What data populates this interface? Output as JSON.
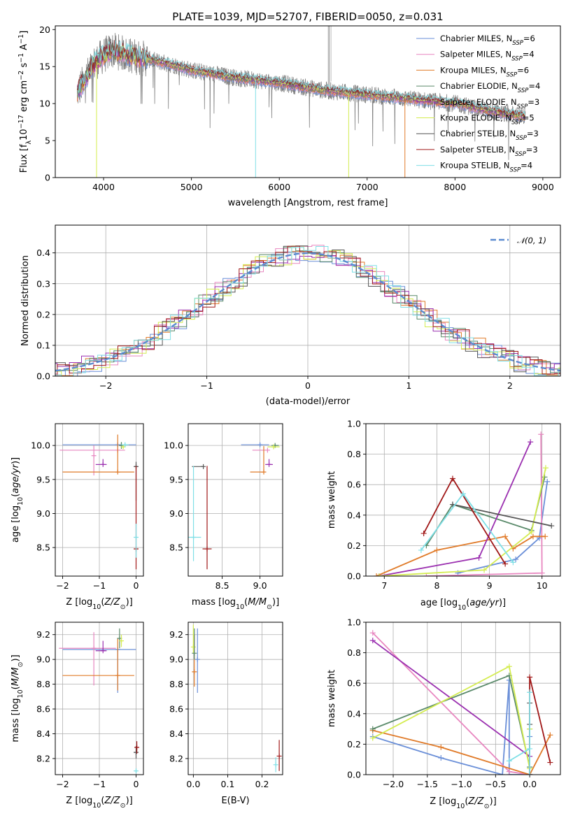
{
  "figure_title": "PLATE=1039, MJD=52707, FIBERID=0050, z=0.031",
  "colors": {
    "chabrier_miles": "#6a8fd8",
    "salpeter_miles": "#e887c0",
    "kroupa_miles": "#e07b2a",
    "chabrier_elodie": "#5a8a6a",
    "salpeter_elodie": "#9b30b0",
    "kroupa_elodie": "#d4ec50",
    "chabrier_stelib": "#555555",
    "salpeter_stelib": "#a01818",
    "kroupa_stelib": "#7fdfe6",
    "observed": "#808080",
    "normal": "#5b8bd0"
  },
  "chart_data": [
    {
      "id": "spectrum",
      "type": "line",
      "xlabel": "wavelength [Angstrom, rest frame]",
      "ylabel": "Flux [f_λ 10^-17 erg cm^-2 s^-1 A^-1]",
      "xlim": [
        3450,
        9200
      ],
      "ylim": [
        0,
        20.5
      ],
      "xticks": [
        4000,
        5000,
        6000,
        7000,
        8000,
        9000
      ],
      "yticks": [
        0,
        5,
        10,
        15,
        20
      ],
      "legend_position": "upper right",
      "legend": [
        {
          "label": "Chabrier MILES, N_SSP=6",
          "key": "chabrier_miles"
        },
        {
          "label": "Salpeter MILES, N_SSP=4",
          "key": "salpeter_miles"
        },
        {
          "label": "Kroupa MILES, N_SSP=6",
          "key": "kroupa_miles"
        },
        {
          "label": "Chabrier ELODIE, N_SSP=4",
          "key": "chabrier_elodie"
        },
        {
          "label": "Salpeter ELODIE, N_SSP=3",
          "key": "salpeter_elodie"
        },
        {
          "label": "Kroupa ELODIE, N_SSP=5",
          "key": "kroupa_elodie"
        },
        {
          "label": "Chabrier STELIB, N_SSP=3",
          "key": "chabrier_stelib"
        },
        {
          "label": "Salpeter STELIB, N_SSP=3",
          "key": "salpeter_stelib"
        },
        {
          "label": "Kroupa STELIB, N_SSP=4",
          "key": "kroupa_stelib"
        }
      ],
      "continuum_shape": [
        [
          3700,
          11.5
        ],
        [
          3900,
          15.5
        ],
        [
          4000,
          16.5
        ],
        [
          4100,
          17.2
        ],
        [
          4300,
          16.5
        ],
        [
          4500,
          16.0
        ],
        [
          4800,
          15.2
        ],
        [
          5000,
          14.5
        ],
        [
          5500,
          13.5
        ],
        [
          6000,
          12.8
        ],
        [
          6500,
          11.8
        ],
        [
          7000,
          11.2
        ],
        [
          7500,
          10.6
        ],
        [
          8000,
          10.0
        ],
        [
          8500,
          8.8
        ],
        [
          8800,
          8.2
        ]
      ]
    },
    {
      "id": "residuals",
      "type": "histogram",
      "xlabel": "(data-model)/error",
      "ylabel": "Normed distribution",
      "xlim": [
        -2.5,
        2.5
      ],
      "ylim": [
        0,
        0.49
      ],
      "xticks": [
        -2,
        -1,
        0,
        1,
        2
      ],
      "yticks": [
        0.0,
        0.1,
        0.2,
        0.3,
        0.4
      ],
      "bin_width": 0.12,
      "reference": {
        "label": "𝒩(0, 1)",
        "mean": 0,
        "sigma": 1
      }
    },
    {
      "id": "age_vs_Z",
      "type": "scatter",
      "xlabel": "Z [log10(Z/Z☉)]",
      "ylabel": "age  [log10(age/yr)]",
      "xlim": [
        -2.2,
        0.2
      ],
      "ylim": [
        8.08,
        10.32
      ],
      "xticks": [
        -2,
        -1,
        0
      ],
      "yticks": [
        8.5,
        9.0,
        9.5,
        10.0
      ],
      "points": [
        {
          "key": "chabrier_miles",
          "x": -0.5,
          "xerr": [
            1.5,
            0.5
          ],
          "y": 10.01,
          "yerr": [
            0.02,
            0.02
          ]
        },
        {
          "key": "salpeter_miles",
          "x": -0.5,
          "xerr": [
            1.58,
            0.2
          ],
          "y": 9.93,
          "yerr": [
            0.02,
            0.02
          ]
        },
        {
          "key": "salpeter_miles",
          "x": -1.15,
          "xerr": [
            0.0,
            0.0
          ],
          "y": 9.85,
          "yerr": [
            0.29,
            0.15
          ]
        },
        {
          "key": "kroupa_miles",
          "x": -0.5,
          "xerr": [
            1.5,
            0.45
          ],
          "y": 9.61,
          "yerr": [
            0.0,
            0.55
          ]
        },
        {
          "key": "chabrier_elodie",
          "x": -0.4,
          "xerr": [
            0.05,
            0.05
          ],
          "y": 10.0,
          "yerr": [
            0.05,
            0.05
          ]
        },
        {
          "key": "salpeter_elodie",
          "x": -0.9,
          "xerr": [
            0.2,
            0.1
          ],
          "y": 9.72,
          "yerr": [
            0.0,
            0.08
          ]
        },
        {
          "key": "kroupa_elodie",
          "x": -0.35,
          "xerr": [
            0.05,
            0.05
          ],
          "y": 9.98,
          "yerr": [
            0.02,
            0.02
          ]
        },
        {
          "key": "chabrier_stelib",
          "x": 0.0,
          "xerr": [
            0.05,
            0.05
          ],
          "y": 9.69,
          "yerr": [
            0.5,
            0.07
          ]
        },
        {
          "key": "salpeter_stelib",
          "x": 0.0,
          "xerr": [
            0.06,
            0.06
          ],
          "y": 8.48,
          "yerr": [
            0.3,
            1.22
          ]
        },
        {
          "key": "kroupa_stelib",
          "x": 0.0,
          "xerr": [
            0.02,
            0.02
          ],
          "y": 8.65,
          "yerr": [
            0.3,
            0.2
          ]
        },
        {
          "key": "kroupa_stelib",
          "x": -0.3,
          "xerr": [
            0.1,
            0.1
          ],
          "y": 10.01,
          "yerr": [
            0.02,
            0.02
          ]
        }
      ]
    },
    {
      "id": "age_vs_mass",
      "type": "scatter",
      "xlabel": "mass [log10(M/M☉)]",
      "ylabel": "",
      "xlim": [
        8.05,
        9.3
      ],
      "ylim": [
        8.08,
        10.32
      ],
      "xticks": [
        8.5,
        9.0
      ],
      "yticks": [
        8.5,
        9.0,
        9.5,
        10.0
      ],
      "points": [
        {
          "key": "chabrier_miles",
          "x": 9.0,
          "xerr": [
            0.25,
            0.12
          ],
          "y": 10.01,
          "yerr": [
            0.02,
            0.02
          ]
        },
        {
          "key": "salpeter_miles",
          "x": 9.1,
          "xerr": [
            0.2,
            0.0
          ],
          "y": 9.93,
          "yerr": [
            0.0,
            0.0
          ]
        },
        {
          "key": "kroupa_miles",
          "x": 9.05,
          "xerr": [
            0.18,
            0.0
          ],
          "y": 9.61,
          "yerr": [
            0.0,
            0.38
          ]
        },
        {
          "key": "chabrier_elodie",
          "x": 9.2,
          "xerr": [
            0.05,
            0.05
          ],
          "y": 10.0,
          "yerr": [
            0.02,
            0.02
          ]
        },
        {
          "key": "salpeter_elodie",
          "x": 9.12,
          "xerr": [
            0.05,
            0.05
          ],
          "y": 9.72,
          "yerr": [
            0.0,
            0.08
          ]
        },
        {
          "key": "kroupa_elodie",
          "x": 9.18,
          "xerr": [
            0.08,
            0.08
          ],
          "y": 9.98,
          "yerr": [
            0.02,
            0.02
          ]
        },
        {
          "key": "chabrier_stelib",
          "x": 8.25,
          "xerr": [
            0.15,
            0.0
          ],
          "y": 9.69,
          "yerr": [
            0.0,
            0.0
          ]
        },
        {
          "key": "salpeter_stelib",
          "x": 8.3,
          "xerr": [
            0.06,
            0.06
          ],
          "y": 8.48,
          "yerr": [
            0.3,
            1.22
          ]
        },
        {
          "key": "kroupa_stelib",
          "x": 8.12,
          "xerr": [
            0.1,
            0.1
          ],
          "y": 8.65,
          "yerr": [
            0.35,
            1.05
          ]
        }
      ]
    },
    {
      "id": "weight_vs_age",
      "type": "line",
      "xlabel": "age  [log10(age/yr)]",
      "ylabel": "mass weight",
      "xlim": [
        6.65,
        10.35
      ],
      "ylim": [
        0,
        1.0
      ],
      "xticks": [
        7,
        8,
        9,
        10
      ],
      "yticks": [
        0.0,
        0.2,
        0.4,
        0.6,
        0.8,
        1.0
      ],
      "series": [
        {
          "key": "chabrier_miles",
          "x": [
            8.4,
            9.5,
            9.95,
            10.1
          ],
          "y": [
            0.02,
            0.11,
            0.25,
            0.62
          ]
        },
        {
          "key": "salpeter_miles",
          "x": [
            7.8,
            10.0,
            9.98
          ],
          "y": [
            0.0,
            0.02,
            0.93
          ]
        },
        {
          "key": "kroupa_miles",
          "x": [
            6.85,
            8.0,
            9.3,
            9.45,
            9.83,
            10.06
          ],
          "y": [
            0.0,
            0.17,
            0.26,
            0.18,
            0.26,
            0.26
          ]
        },
        {
          "key": "chabrier_elodie",
          "x": [
            7.8,
            8.3,
            9.8,
            10.05
          ],
          "y": [
            0.2,
            0.47,
            0.3,
            0.65
          ]
        },
        {
          "key": "salpeter_elodie",
          "x": [
            6.9,
            8.8,
            9.78
          ],
          "y": [
            0.0,
            0.12,
            0.88
          ]
        },
        {
          "key": "kroupa_elodie",
          "x": [
            6.9,
            8.9,
            9.8,
            10.07
          ],
          "y": [
            0.0,
            0.04,
            0.29,
            0.71
          ]
        },
        {
          "key": "chabrier_stelib",
          "x": [
            8.3,
            10.18
          ],
          "y": [
            0.47,
            0.33
          ]
        },
        {
          "key": "salpeter_stelib",
          "x": [
            7.75,
            8.3,
            9.3
          ],
          "y": [
            0.28,
            0.64,
            0.08
          ]
        },
        {
          "key": "kroupa_stelib",
          "x": [
            7.7,
            8.5,
            9.45
          ],
          "y": [
            0.17,
            0.54,
            0.09
          ]
        }
      ]
    },
    {
      "id": "mass_vs_Z",
      "type": "scatter",
      "xlabel": "Z [log10(Z/Z☉)]",
      "ylabel": "mass [log10(M/M☉)]",
      "xlim": [
        -2.2,
        0.2
      ],
      "ylim": [
        8.07,
        9.3
      ],
      "xticks": [
        -2,
        -1,
        0
      ],
      "yticks": [
        8.2,
        8.4,
        8.6,
        8.8,
        9.0,
        9.2
      ],
      "points": [
        {
          "key": "chabrier_miles",
          "x": -0.5,
          "xerr": [
            1.5,
            0.5
          ],
          "y": 9.08,
          "yerr": [
            0.35,
            0.0
          ]
        },
        {
          "key": "salpeter_miles",
          "x": -1.15,
          "xerr": [
            0.95,
            0.6
          ],
          "y": 9.09,
          "yerr": [
            0.3,
            0.13
          ]
        },
        {
          "key": "kroupa_miles",
          "x": -0.5,
          "xerr": [
            1.5,
            0.45
          ],
          "y": 8.87,
          "yerr": [
            0.12,
            0.3
          ]
        },
        {
          "key": "chabrier_elodie",
          "x": -0.45,
          "xerr": [
            0.05,
            0.05
          ],
          "y": 9.17,
          "yerr": [
            0.08,
            0.08
          ]
        },
        {
          "key": "salpeter_elodie",
          "x": -0.9,
          "xerr": [
            0.2,
            0.1
          ],
          "y": 9.07,
          "yerr": [
            0.0,
            0.08
          ]
        },
        {
          "key": "kroupa_elodie",
          "x": -0.4,
          "xerr": [
            0.05,
            0.05
          ],
          "y": 9.15,
          "yerr": [
            0.05,
            0.05
          ]
        },
        {
          "key": "chabrier_stelib",
          "x": 0.0,
          "xerr": [
            0.05,
            0.05
          ],
          "y": 8.25,
          "yerr": [
            0.05,
            0.05
          ]
        },
        {
          "key": "salpeter_stelib",
          "x": 0.02,
          "xerr": [
            0.05,
            0.05
          ],
          "y": 8.29,
          "yerr": [
            0.05,
            0.05
          ]
        },
        {
          "key": "kroupa_stelib",
          "x": 0.0,
          "xerr": [
            0.02,
            0.02
          ],
          "y": 8.1,
          "yerr": [
            0.02,
            0.02
          ]
        }
      ]
    },
    {
      "id": "mass_vs_ebv",
      "type": "scatter",
      "xlabel": "E(B-V)",
      "ylabel": "",
      "xlim": [
        -0.015,
        0.26
      ],
      "ylim": [
        8.07,
        9.3
      ],
      "xticks": [
        0.0,
        0.1,
        0.2
      ],
      "yticks": [
        8.2,
        8.4,
        8.6,
        8.8,
        9.0,
        9.2
      ],
      "points": [
        {
          "key": "chabrier_miles",
          "x": 0.012,
          "xerr": [
            0.0,
            0.0
          ],
          "y": 9.0,
          "yerr": [
            0.27,
            0.25
          ]
        },
        {
          "key": "kroupa_miles",
          "x": 0.003,
          "xerr": [
            0.0,
            0.0
          ],
          "y": 8.9,
          "yerr": [
            0.12,
            0.3
          ]
        },
        {
          "key": "kroupa_elodie",
          "x": 0.0,
          "xerr": [
            0.0,
            0.0
          ],
          "y": 9.1,
          "yerr": [
            0.05,
            0.18
          ]
        },
        {
          "key": "chabrier_elodie",
          "x": 0.003,
          "xerr": [
            0.0,
            0.0
          ],
          "y": 9.05,
          "yerr": [
            0.05,
            0.2
          ]
        },
        {
          "key": "salpeter_stelib",
          "x": 0.25,
          "xerr": [
            0.0,
            0.0
          ],
          "y": 8.22,
          "yerr": [
            0.12,
            0.13
          ]
        },
        {
          "key": "kroupa_stelib",
          "x": 0.24,
          "xerr": [
            0.0,
            0.0
          ],
          "y": 8.15,
          "yerr": [
            0.06,
            0.06
          ]
        }
      ]
    },
    {
      "id": "weight_vs_Z",
      "type": "line",
      "xlabel": "Z [log10(Z/Z☉)]",
      "ylabel": "mass weight",
      "xlim": [
        -2.4,
        0.45
      ],
      "ylim": [
        0,
        1.0
      ],
      "xticks": [
        -2.0,
        -1.5,
        -1.0,
        -0.5,
        0.0
      ],
      "yticks": [
        0.0,
        0.2,
        0.4,
        0.6,
        0.8,
        1.0
      ],
      "series": [
        {
          "key": "chabrier_miles",
          "x": [
            -2.3,
            -1.3,
            -0.4,
            -0.3,
            -0.3,
            0.0,
            0.0
          ],
          "y": [
            0.25,
            0.11,
            0.0,
            0.62,
            0.0,
            0.0,
            0.25
          ]
        },
        {
          "key": "salpeter_miles",
          "x": [
            -2.3,
            -0.3,
            0.0
          ],
          "y": [
            0.93,
            0.02,
            0.0
          ]
        },
        {
          "key": "kroupa_miles",
          "x": [
            -2.3,
            -1.3,
            0.0,
            0.3
          ],
          "y": [
            0.29,
            0.18,
            0.0,
            0.26
          ]
        },
        {
          "key": "chabrier_elodie",
          "x": [
            -2.3,
            -0.3,
            0.0,
            0.0
          ],
          "y": [
            0.3,
            0.65,
            0.05,
            0.3
          ]
        },
        {
          "key": "salpeter_elodie",
          "x": [
            -2.3,
            0.0,
            0.0
          ],
          "y": [
            0.88,
            0.12,
            0.0
          ]
        },
        {
          "key": "kroupa_elodie",
          "x": [
            -2.3,
            -0.3,
            0.0,
            0.0
          ],
          "y": [
            0.24,
            0.71,
            0.04,
            0.3
          ]
        },
        {
          "key": "chabrier_stelib",
          "x": [
            0.0,
            0.0,
            0.0
          ],
          "y": [
            0.47,
            0.33,
            0.0
          ]
        },
        {
          "key": "salpeter_stelib",
          "x": [
            0.0,
            0.0,
            0.3
          ],
          "y": [
            0.0,
            0.64,
            0.08
          ]
        },
        {
          "key": "kroupa_stelib",
          "x": [
            -0.3,
            0.0,
            0.0,
            0.0
          ],
          "y": [
            0.09,
            0.17,
            0.54,
            0.0
          ]
        }
      ]
    }
  ]
}
